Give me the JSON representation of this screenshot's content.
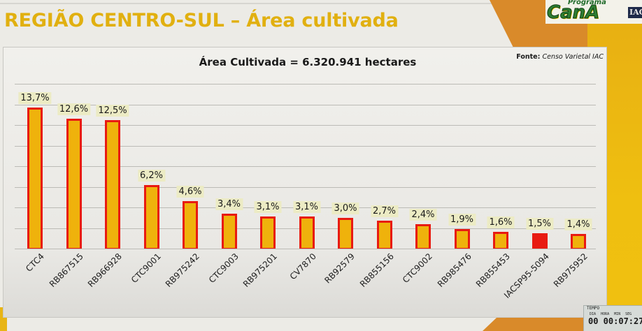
{
  "page": {
    "title": "REGIÃO CENTRO-SUL – Área cultivada"
  },
  "logo": {
    "programa": "Programa",
    "cana": "CanA",
    "iac": "IAC"
  },
  "chart": {
    "title": "Área Cultivada = 6.320.941 hectares",
    "source_label": "Fonte:",
    "source_value": "Censo Varietal IAC"
  },
  "colors": {
    "title": "#e1b010",
    "bar_fill": "#efb20c",
    "bar_border": "#e81a12",
    "highlight_bar": "#e81a12",
    "label_bg": "#ecebc4"
  },
  "chart_data": {
    "type": "bar",
    "title": "Área Cultivada = 6.320.941 hectares",
    "subtitle": "REGIÃO CENTRO-SUL – Área cultivada",
    "source": "Fonte: Censo Varietal IAC",
    "xlabel": "",
    "ylabel": "",
    "unit": "%",
    "ylim": [
      0,
      16
    ],
    "grid": true,
    "legend": "none",
    "categories": [
      "CTC4",
      "RB867515",
      "RB966928",
      "CTC9001",
      "RB975242",
      "CTC9003",
      "RB975201",
      "CV7870",
      "RB92579",
      "RB855156",
      "CTC9002",
      "RB985476",
      "RB855453",
      "IACSP95-5094",
      "RB975952"
    ],
    "values": [
      13.7,
      12.6,
      12.5,
      6.2,
      4.6,
      3.4,
      3.1,
      3.1,
      3.0,
      2.7,
      2.4,
      1.9,
      1.6,
      1.5,
      1.4
    ],
    "labels": [
      "13,7%",
      "12,6%",
      "12,5%",
      "6,2%",
      "4,6%",
      "3,4%",
      "3,1%",
      "3,1%",
      "3,0%",
      "2,7%",
      "2,4%",
      "1,9%",
      "1,6%",
      "1,5%",
      "1,4%"
    ],
    "highlighted": [
      "IACSP95-5094"
    ]
  },
  "timer": {
    "title": "TEMPO",
    "units": "DIA HORA MIN SEG",
    "value": "00 00:07:27"
  }
}
